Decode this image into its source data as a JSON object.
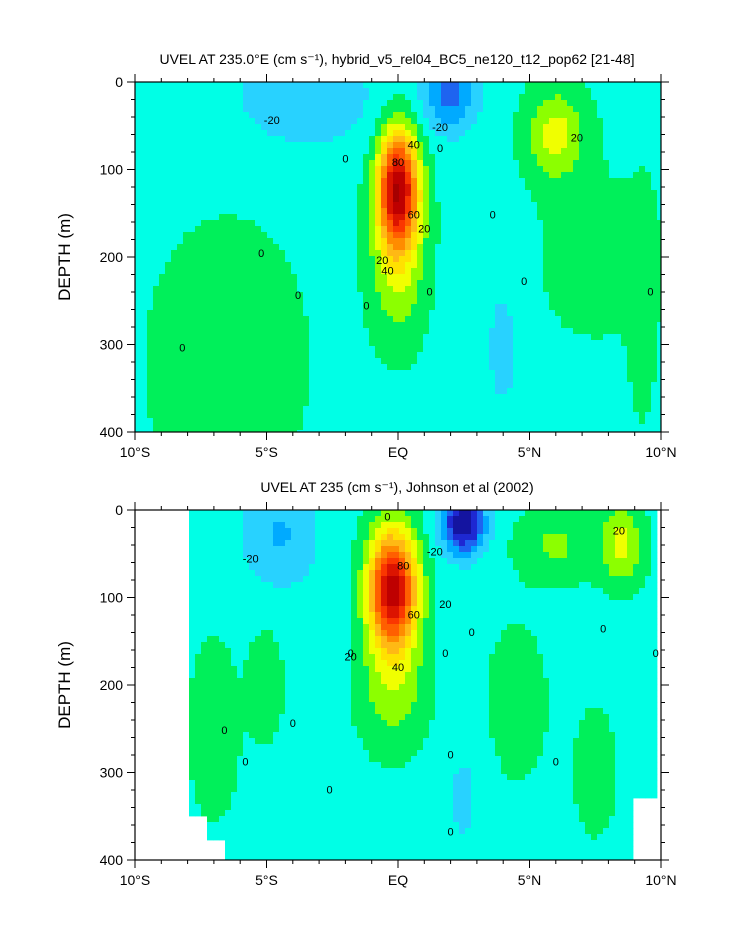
{
  "chart_data": [
    {
      "type": "contour",
      "title": "UVEL AT 235.0°E (cm s⁻¹), hybrid_v5_rel04_BC5_ne120_t12_pop62 [21-48]",
      "ylabel": "DEPTH (m)",
      "xlabel": "",
      "xlim": [
        -10,
        10
      ],
      "ylim": [
        400,
        0
      ],
      "x_ticks": [
        "10°S",
        "5°S",
        "EQ",
        "5°N",
        "10°N"
      ],
      "y_ticks": [
        "0",
        "100",
        "200",
        "300",
        "400"
      ],
      "contour_interval": 10,
      "contour_labels": [
        "-20",
        "-20",
        "0",
        "0",
        "0",
        "0",
        "0",
        "0",
        "0",
        "0",
        "0",
        "0",
        "20",
        "20",
        "20",
        "40",
        "40",
        "60",
        "80"
      ],
      "features": [
        {
          "kind": "jet_core",
          "x": 0.0,
          "depth": 120,
          "value": 90
        },
        {
          "kind": "surface_westward",
          "x": 2.0,
          "depth": 10,
          "value": -30
        },
        {
          "kind": "eastward_maximum",
          "x": 6.0,
          "depth": 60,
          "value": 25
        }
      ]
    },
    {
      "type": "contour",
      "title": "UVEL AT 235 (cm s⁻¹), Johnson et al (2002)",
      "ylabel": "DEPTH (m)",
      "xlabel": "",
      "xlim": [
        -10,
        10
      ],
      "ylim": [
        400,
        0
      ],
      "x_ticks": [
        "10°S",
        "5°S",
        "EQ",
        "5°N",
        "10°N"
      ],
      "y_ticks": [
        "0",
        "100",
        "200",
        "300",
        "400"
      ],
      "contour_interval": 10,
      "contour_labels": [
        "0",
        "-20",
        "-20",
        "0",
        "0",
        "0",
        "0",
        "0",
        "0",
        "0",
        "0",
        "0",
        "0",
        "0",
        "0",
        "20",
        "20",
        "20",
        "40",
        "60",
        "80"
      ],
      "features": [
        {
          "kind": "jet_core",
          "x": -0.2,
          "depth": 90,
          "value": 95
        },
        {
          "kind": "surface_westward",
          "x": 2.5,
          "depth": 15,
          "value": -50
        },
        {
          "kind": "eastward_maximum",
          "x": 8.5,
          "depth": 40,
          "value": 25
        }
      ]
    }
  ]
}
